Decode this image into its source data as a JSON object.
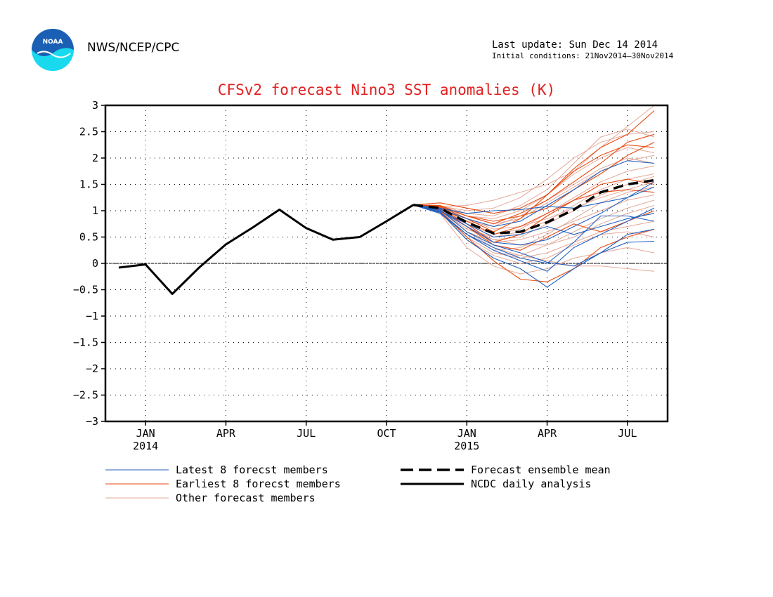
{
  "header": {
    "organization": "NWS/NCEP/CPC",
    "last_update": "Last update: Sun Dec 14 2014",
    "initial_conditions": "Initial conditions: 21Nov2014–30Nov2014",
    "logo_text": "NOAA"
  },
  "colors": {
    "title": "#e02020",
    "latest": "#2060c0",
    "earliest": "#e84a10",
    "other": "#e4a898",
    "analysis": "#000000",
    "logo_blue": "#1a5fb4",
    "logo_cyan": "#19d9ef"
  },
  "chart_data": {
    "type": "line",
    "title": "CFSv2 forecast Nino3 SST anomalies (K)",
    "xlabel": "",
    "ylabel": "",
    "ylim": [
      -3,
      3
    ],
    "yticks": [
      "3",
      "2.5",
      "2",
      "1.5",
      "1",
      "0.5",
      "0",
      "−0.5",
      "−1",
      "−1.5",
      "−2",
      "−2.5",
      "−3"
    ],
    "x_range": [
      "2013-12",
      "2015-08"
    ],
    "xticks": [
      {
        "month": "2014-01",
        "label": "JAN",
        "year": "2014"
      },
      {
        "month": "2014-04",
        "label": "APR",
        "year": ""
      },
      {
        "month": "2014-07",
        "label": "JUL",
        "year": ""
      },
      {
        "month": "2014-10",
        "label": "OCT",
        "year": ""
      },
      {
        "month": "2015-01",
        "label": "JAN",
        "year": "2015"
      },
      {
        "month": "2015-04",
        "label": "APR",
        "year": ""
      },
      {
        "month": "2015-07",
        "label": "JUL",
        "year": ""
      }
    ],
    "grid": "dotted",
    "zero_line": true,
    "legend": [
      {
        "key": "latest",
        "label": "Latest 8 forecst members",
        "style": "thin-blue"
      },
      {
        "key": "earliest",
        "label": "Earliest 8 forecst members",
        "style": "thin-orange"
      },
      {
        "key": "other",
        "label": "Other forecast members",
        "style": "thin-pink"
      },
      {
        "key": "mean",
        "label": "Forecast ensemble mean",
        "style": "thick-dashed"
      },
      {
        "key": "analysis",
        "label": "NCDC daily analysis",
        "style": "thick-solid"
      }
    ],
    "forecast_months": [
      "2014-11",
      "2014-12",
      "2015-01",
      "2015-02",
      "2015-03",
      "2015-04",
      "2015-05",
      "2015-06",
      "2015-07",
      "2015-08"
    ],
    "series": [
      {
        "name": "NCDC daily analysis",
        "group": "analysis",
        "x": [
          "2013-12",
          "2014-01",
          "2014-02",
          "2014-03",
          "2014-04",
          "2014-05",
          "2014-06",
          "2014-07",
          "2014-08",
          "2014-09",
          "2014-10",
          "2014-11"
        ],
        "values": [
          -0.08,
          -0.02,
          -0.58,
          -0.08,
          0.36,
          0.68,
          1.02,
          0.67,
          0.45,
          0.5,
          0.8,
          1.11
        ]
      },
      {
        "name": "Forecast ensemble mean",
        "group": "mean",
        "values": [
          1.11,
          1.05,
          0.78,
          0.57,
          0.6,
          0.78,
          1.02,
          1.35,
          1.5,
          1.58
        ]
      },
      {
        "group": "latest",
        "values": [
          1.11,
          1.02,
          0.6,
          0.35,
          0.2,
          0.02,
          -0.05,
          0.2,
          0.4,
          0.42
        ]
      },
      {
        "group": "latest",
        "values": [
          1.11,
          0.98,
          0.45,
          0.1,
          -0.1,
          -0.45,
          -0.1,
          0.2,
          0.55,
          0.65
        ]
      },
      {
        "group": "latest",
        "values": [
          1.11,
          1.0,
          0.75,
          0.5,
          0.55,
          0.7,
          0.55,
          0.7,
          0.85,
          0.95
        ]
      },
      {
        "group": "latest",
        "values": [
          1.11,
          1.05,
          0.95,
          1.0,
          1.02,
          1.08,
          1.05,
          1.15,
          1.25,
          1.45
        ]
      },
      {
        "group": "latest",
        "values": [
          1.11,
          0.97,
          0.55,
          0.25,
          0.05,
          -0.15,
          0.3,
          0.55,
          0.8,
          1.05
        ]
      },
      {
        "group": "latest",
        "values": [
          1.11,
          1.03,
          0.85,
          0.7,
          0.8,
          1.1,
          1.4,
          1.75,
          1.95,
          1.9
        ]
      },
      {
        "group": "latest",
        "values": [
          1.11,
          1.0,
          0.7,
          0.4,
          0.35,
          0.45,
          0.7,
          0.95,
          1.25,
          1.55
        ]
      },
      {
        "group": "latest",
        "values": [
          1.11,
          0.95,
          0.55,
          0.3,
          0.1,
          0.0,
          0.4,
          0.9,
          0.9,
          0.8
        ]
      },
      {
        "group": "earliest",
        "values": [
          1.11,
          1.15,
          1.05,
          0.95,
          1.05,
          1.3,
          1.8,
          2.2,
          2.45,
          2.9
        ]
      },
      {
        "group": "earliest",
        "values": [
          1.11,
          1.1,
          0.9,
          0.75,
          0.95,
          1.2,
          1.55,
          1.9,
          2.3,
          2.45
        ]
      },
      {
        "group": "earliest",
        "values": [
          1.11,
          1.08,
          0.85,
          0.6,
          0.85,
          1.3,
          1.75,
          2.05,
          2.25,
          2.2
        ]
      },
      {
        "group": "earliest",
        "values": [
          1.11,
          1.05,
          0.75,
          0.4,
          0.55,
          0.9,
          1.2,
          1.5,
          1.6,
          1.5
        ]
      },
      {
        "group": "earliest",
        "values": [
          1.11,
          1.0,
          0.5,
          0.05,
          -0.3,
          -0.35,
          -0.1,
          0.3,
          0.5,
          0.65
        ]
      },
      {
        "group": "earliest",
        "values": [
          1.11,
          1.06,
          0.8,
          0.55,
          0.7,
          0.95,
          1.2,
          1.35,
          1.4,
          1.35
        ]
      },
      {
        "group": "earliest",
        "values": [
          1.11,
          1.04,
          0.7,
          0.35,
          0.25,
          0.5,
          0.75,
          0.6,
          0.8,
          1.0
        ]
      },
      {
        "group": "earliest",
        "values": [
          1.11,
          1.09,
          0.9,
          0.8,
          0.9,
          1.05,
          1.4,
          1.7,
          2.05,
          2.3
        ]
      },
      {
        "group": "other",
        "values": [
          1.11,
          1.08,
          1.1,
          1.2,
          1.35,
          1.5,
          1.75,
          2.2,
          2.6,
          3.0
        ]
      },
      {
        "group": "other",
        "values": [
          1.11,
          1.02,
          0.6,
          0.3,
          0.15,
          0.05,
          -0.05,
          -0.05,
          -0.1,
          -0.15
        ]
      },
      {
        "group": "other",
        "values": [
          1.11,
          0.95,
          0.3,
          -0.05,
          -0.2,
          -0.1,
          0.1,
          0.2,
          0.3,
          0.2
        ]
      },
      {
        "group": "other",
        "values": [
          1.11,
          1.0,
          0.65,
          0.5,
          0.6,
          0.8,
          1.1,
          1.4,
          1.6,
          1.7
        ]
      },
      {
        "group": "other",
        "values": [
          1.11,
          1.05,
          0.8,
          0.7,
          0.9,
          1.2,
          1.5,
          1.8,
          2.0,
          1.9
        ]
      },
      {
        "group": "other",
        "values": [
          1.11,
          1.1,
          0.95,
          0.9,
          1.1,
          1.4,
          1.9,
          2.4,
          2.55,
          2.4
        ]
      },
      {
        "group": "other",
        "values": [
          1.11,
          0.98,
          0.5,
          0.2,
          0.1,
          0.2,
          0.4,
          0.6,
          0.7,
          0.8
        ]
      },
      {
        "group": "other",
        "values": [
          1.11,
          1.03,
          0.75,
          0.55,
          0.65,
          0.95,
          1.25,
          1.55,
          1.75,
          1.85
        ]
      },
      {
        "group": "other",
        "values": [
          1.11,
          1.07,
          0.85,
          0.65,
          0.7,
          0.85,
          1.05,
          1.25,
          1.4,
          1.55
        ]
      },
      {
        "group": "other",
        "values": [
          1.11,
          1.0,
          0.55,
          0.25,
          0.3,
          0.55,
          0.85,
          1.15,
          1.35,
          1.45
        ]
      },
      {
        "group": "other",
        "values": [
          1.11,
          1.06,
          0.9,
          0.85,
          1.0,
          1.3,
          1.7,
          2.0,
          2.2,
          2.1
        ]
      },
      {
        "group": "other",
        "values": [
          1.11,
          0.96,
          0.45,
          0.15,
          0.0,
          0.1,
          0.35,
          0.55,
          0.6,
          0.5
        ]
      },
      {
        "group": "other",
        "values": [
          1.11,
          1.04,
          0.7,
          0.45,
          0.5,
          0.75,
          1.0,
          1.3,
          1.5,
          1.65
        ]
      },
      {
        "group": "other",
        "values": [
          1.11,
          1.09,
          1.0,
          1.05,
          1.25,
          1.6,
          2.0,
          2.3,
          2.45,
          2.5
        ]
      },
      {
        "group": "other",
        "values": [
          1.11,
          1.01,
          0.6,
          0.4,
          0.45,
          0.6,
          0.8,
          1.0,
          1.2,
          1.3
        ]
      },
      {
        "group": "other",
        "values": [
          1.11,
          1.02,
          0.65,
          0.45,
          0.35,
          0.35,
          0.5,
          0.75,
          0.95,
          1.1
        ]
      },
      {
        "group": "other",
        "values": [
          1.11,
          1.07,
          0.9,
          0.75,
          0.85,
          1.15,
          1.45,
          1.75,
          1.95,
          2.05
        ]
      },
      {
        "group": "other",
        "values": [
          1.11,
          0.99,
          0.5,
          0.2,
          0.15,
          0.35,
          0.6,
          0.85,
          1.05,
          1.2
        ]
      }
    ]
  }
}
